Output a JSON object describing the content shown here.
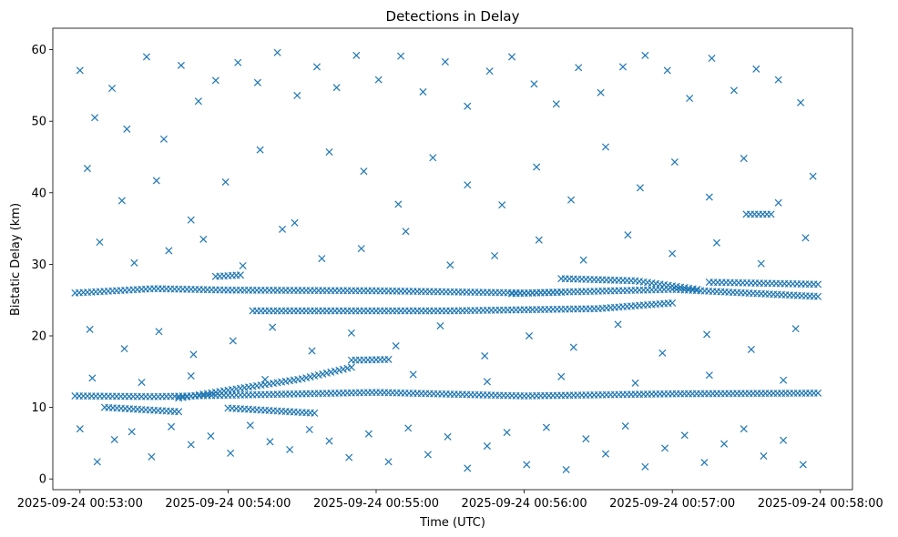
{
  "chart_data": {
    "type": "scatter",
    "title": "Detections in Delay",
    "xlabel": "Time (UTC)",
    "ylabel": "Bistatic Delay (km)",
    "x_ticks": [
      "2025-09-24 00:53:00",
      "2025-09-24 00:54:00",
      "2025-09-24 00:55:00",
      "2025-09-24 00:56:00",
      "2025-09-24 00:57:00",
      "2025-09-24 00:58:00"
    ],
    "xlim": [
      "2025-09-24 00:52:49",
      "2025-09-24 00:58:13"
    ],
    "y_ticks": [
      0,
      10,
      20,
      30,
      40,
      50,
      60
    ],
    "ylim": [
      -1.5,
      63
    ],
    "marker": "x",
    "grid": false,
    "color": "#1f77b4",
    "tracks": [
      {
        "points": [
          [
            "2025-09-24 00:52:58",
            11.6
          ],
          [
            "2025-09-24 00:53:30",
            11.5
          ],
          [
            "2025-09-24 00:54:00",
            11.7
          ],
          [
            "2025-09-24 00:55:00",
            12.1
          ],
          [
            "2025-09-24 00:56:00",
            11.6
          ],
          [
            "2025-09-24 00:57:00",
            11.9
          ],
          [
            "2025-09-24 00:57:59",
            12.0
          ]
        ]
      },
      {
        "points": [
          [
            "2025-09-24 00:53:40",
            11.3
          ],
          [
            "2025-09-24 00:54:00",
            12.4
          ],
          [
            "2025-09-24 00:54:30",
            14.0
          ],
          [
            "2025-09-24 00:54:50",
            15.6
          ]
        ]
      },
      {
        "points": [
          [
            "2025-09-24 00:54:50",
            16.6
          ],
          [
            "2025-09-24 00:55:05",
            16.7
          ]
        ]
      },
      {
        "points": [
          [
            "2025-09-24 00:53:10",
            10.0
          ],
          [
            "2025-09-24 00:53:40",
            9.4
          ]
        ]
      },
      {
        "points": [
          [
            "2025-09-24 00:54:00",
            9.9
          ],
          [
            "2025-09-24 00:54:35",
            9.2
          ]
        ]
      },
      {
        "points": [
          [
            "2025-09-24 00:52:58",
            26.0
          ],
          [
            "2025-09-24 00:53:30",
            26.6
          ],
          [
            "2025-09-24 00:54:00",
            26.4
          ],
          [
            "2025-09-24 00:55:00",
            26.3
          ],
          [
            "2025-09-24 00:56:00",
            26.0
          ],
          [
            "2025-09-24 00:57:00",
            26.5
          ],
          [
            "2025-09-24 00:57:59",
            25.5
          ]
        ]
      },
      {
        "points": [
          [
            "2025-09-24 00:54:10",
            23.5
          ],
          [
            "2025-09-24 00:55:30",
            23.5
          ],
          [
            "2025-09-24 00:56:30",
            23.8
          ],
          [
            "2025-09-24 00:57:00",
            24.6
          ]
        ]
      },
      {
        "points": [
          [
            "2025-09-24 00:56:15",
            28.0
          ],
          [
            "2025-09-24 00:56:45",
            27.7
          ],
          [
            "2025-09-24 00:57:10",
            26.5
          ]
        ]
      },
      {
        "points": [
          [
            "2025-09-24 00:55:55",
            25.9
          ],
          [
            "2025-09-24 00:56:15",
            26.1
          ]
        ]
      },
      {
        "points": [
          [
            "2025-09-24 00:57:30",
            37.0
          ],
          [
            "2025-09-24 00:57:40",
            37.0
          ]
        ]
      },
      {
        "points": [
          [
            "2025-09-24 00:53:55",
            28.3
          ],
          [
            "2025-09-24 00:54:05",
            28.5
          ]
        ]
      },
      {
        "points": [
          [
            "2025-09-24 00:57:15",
            27.5
          ],
          [
            "2025-09-24 00:57:59",
            27.2
          ]
        ]
      }
    ],
    "scatter_points": [
      [
        "2025-09-24 00:53:00",
        57.1
      ],
      [
        "2025-09-24 00:53:06",
        50.5
      ],
      [
        "2025-09-24 00:53:13",
        54.6
      ],
      [
        "2025-09-24 00:53:19",
        48.9
      ],
      [
        "2025-09-24 00:53:27",
        59.0
      ],
      [
        "2025-09-24 00:53:34",
        47.5
      ],
      [
        "2025-09-24 00:53:41",
        57.8
      ],
      [
        "2025-09-24 00:53:48",
        52.8
      ],
      [
        "2025-09-24 00:53:55",
        55.7
      ],
      [
        "2025-09-24 00:54:04",
        58.2
      ],
      [
        "2025-09-24 00:54:12",
        55.4
      ],
      [
        "2025-09-24 00:54:20",
        59.6
      ],
      [
        "2025-09-24 00:54:28",
        53.6
      ],
      [
        "2025-09-24 00:54:36",
        57.6
      ],
      [
        "2025-09-24 00:54:44",
        54.7
      ],
      [
        "2025-09-24 00:54:52",
        59.2
      ],
      [
        "2025-09-24 00:55:01",
        55.8
      ],
      [
        "2025-09-24 00:55:10",
        59.1
      ],
      [
        "2025-09-24 00:55:19",
        54.1
      ],
      [
        "2025-09-24 00:55:28",
        58.3
      ],
      [
        "2025-09-24 00:55:37",
        52.1
      ],
      [
        "2025-09-24 00:55:46",
        57.0
      ],
      [
        "2025-09-24 00:55:55",
        59.0
      ],
      [
        "2025-09-24 00:56:04",
        55.2
      ],
      [
        "2025-09-24 00:56:13",
        52.4
      ],
      [
        "2025-09-24 00:56:22",
        57.5
      ],
      [
        "2025-09-24 00:56:31",
        54.0
      ],
      [
        "2025-09-24 00:56:40",
        57.6
      ],
      [
        "2025-09-24 00:56:49",
        59.2
      ],
      [
        "2025-09-24 00:56:58",
        57.1
      ],
      [
        "2025-09-24 00:57:07",
        53.2
      ],
      [
        "2025-09-24 00:57:16",
        58.8
      ],
      [
        "2025-09-24 00:57:25",
        54.3
      ],
      [
        "2025-09-24 00:57:34",
        57.3
      ],
      [
        "2025-09-24 00:57:43",
        55.8
      ],
      [
        "2025-09-24 00:57:52",
        52.6
      ],
      [
        "2025-09-24 00:53:03",
        43.4
      ],
      [
        "2025-09-24 00:53:17",
        38.9
      ],
      [
        "2025-09-24 00:53:31",
        41.7
      ],
      [
        "2025-09-24 00:53:45",
        36.2
      ],
      [
        "2025-09-24 00:53:59",
        41.5
      ],
      [
        "2025-09-24 00:54:13",
        46.0
      ],
      [
        "2025-09-24 00:54:27",
        35.8
      ],
      [
        "2025-09-24 00:54:41",
        45.7
      ],
      [
        "2025-09-24 00:54:55",
        43.0
      ],
      [
        "2025-09-24 00:55:09",
        38.4
      ],
      [
        "2025-09-24 00:55:23",
        44.9
      ],
      [
        "2025-09-24 00:55:37",
        41.1
      ],
      [
        "2025-09-24 00:55:51",
        38.3
      ],
      [
        "2025-09-24 00:56:05",
        43.6
      ],
      [
        "2025-09-24 00:56:19",
        39.0
      ],
      [
        "2025-09-24 00:56:33",
        46.4
      ],
      [
        "2025-09-24 00:56:47",
        40.7
      ],
      [
        "2025-09-24 00:57:01",
        44.3
      ],
      [
        "2025-09-24 00:57:15",
        39.4
      ],
      [
        "2025-09-24 00:57:29",
        44.8
      ],
      [
        "2025-09-24 00:57:43",
        38.6
      ],
      [
        "2025-09-24 00:57:57",
        42.3
      ],
      [
        "2025-09-24 00:53:08",
        33.1
      ],
      [
        "2025-09-24 00:53:22",
        30.2
      ],
      [
        "2025-09-24 00:53:36",
        31.9
      ],
      [
        "2025-09-24 00:53:50",
        33.5
      ],
      [
        "2025-09-24 00:54:06",
        29.8
      ],
      [
        "2025-09-24 00:54:22",
        34.9
      ],
      [
        "2025-09-24 00:54:38",
        30.8
      ],
      [
        "2025-09-24 00:54:54",
        32.2
      ],
      [
        "2025-09-24 00:55:12",
        34.6
      ],
      [
        "2025-09-24 00:55:30",
        29.9
      ],
      [
        "2025-09-24 00:55:48",
        31.2
      ],
      [
        "2025-09-24 00:56:06",
        33.4
      ],
      [
        "2025-09-24 00:56:24",
        30.6
      ],
      [
        "2025-09-24 00:56:42",
        34.1
      ],
      [
        "2025-09-24 00:57:00",
        31.5
      ],
      [
        "2025-09-24 00:57:18",
        33.0
      ],
      [
        "2025-09-24 00:57:36",
        30.1
      ],
      [
        "2025-09-24 00:57:54",
        33.7
      ],
      [
        "2025-09-24 00:53:04",
        20.9
      ],
      [
        "2025-09-24 00:53:18",
        18.2
      ],
      [
        "2025-09-24 00:53:32",
        20.6
      ],
      [
        "2025-09-24 00:53:46",
        17.4
      ],
      [
        "2025-09-24 00:54:02",
        19.3
      ],
      [
        "2025-09-24 00:54:18",
        21.2
      ],
      [
        "2025-09-24 00:54:34",
        17.9
      ],
      [
        "2025-09-24 00:54:50",
        20.4
      ],
      [
        "2025-09-24 00:55:08",
        18.6
      ],
      [
        "2025-09-24 00:55:26",
        21.4
      ],
      [
        "2025-09-24 00:55:44",
        17.2
      ],
      [
        "2025-09-24 00:56:02",
        20.0
      ],
      [
        "2025-09-24 00:56:20",
        18.4
      ],
      [
        "2025-09-24 00:56:38",
        21.6
      ],
      [
        "2025-09-24 00:56:56",
        17.6
      ],
      [
        "2025-09-24 00:57:14",
        20.2
      ],
      [
        "2025-09-24 00:57:32",
        18.1
      ],
      [
        "2025-09-24 00:57:50",
        21.0
      ],
      [
        "2025-09-24 00:53:05",
        14.1
      ],
      [
        "2025-09-24 00:53:25",
        13.5
      ],
      [
        "2025-09-24 00:53:45",
        14.4
      ],
      [
        "2025-09-24 00:54:15",
        13.9
      ],
      [
        "2025-09-24 00:55:15",
        14.6
      ],
      [
        "2025-09-24 00:55:45",
        13.6
      ],
      [
        "2025-09-24 00:56:15",
        14.3
      ],
      [
        "2025-09-24 00:56:45",
        13.4
      ],
      [
        "2025-09-24 00:57:15",
        14.5
      ],
      [
        "2025-09-24 00:57:45",
        13.8
      ],
      [
        "2025-09-24 00:53:00",
        7.0
      ],
      [
        "2025-09-24 00:53:07",
        2.4
      ],
      [
        "2025-09-24 00:53:14",
        5.5
      ],
      [
        "2025-09-24 00:53:21",
        6.6
      ],
      [
        "2025-09-24 00:53:29",
        3.1
      ],
      [
        "2025-09-24 00:53:37",
        7.3
      ],
      [
        "2025-09-24 00:53:45",
        4.8
      ],
      [
        "2025-09-24 00:53:53",
        6.0
      ],
      [
        "2025-09-24 00:54:01",
        3.6
      ],
      [
        "2025-09-24 00:54:09",
        7.5
      ],
      [
        "2025-09-24 00:54:17",
        5.2
      ],
      [
        "2025-09-24 00:54:25",
        4.1
      ],
      [
        "2025-09-24 00:54:33",
        6.9
      ],
      [
        "2025-09-24 00:54:41",
        5.3
      ],
      [
        "2025-09-24 00:54:49",
        3.0
      ],
      [
        "2025-09-24 00:54:57",
        6.3
      ],
      [
        "2025-09-24 00:55:05",
        2.4
      ],
      [
        "2025-09-24 00:55:13",
        7.1
      ],
      [
        "2025-09-24 00:55:21",
        3.4
      ],
      [
        "2025-09-24 00:55:29",
        5.9
      ],
      [
        "2025-09-24 00:55:37",
        1.5
      ],
      [
        "2025-09-24 00:55:45",
        4.6
      ],
      [
        "2025-09-24 00:55:53",
        6.5
      ],
      [
        "2025-09-24 00:56:01",
        2.0
      ],
      [
        "2025-09-24 00:56:09",
        7.2
      ],
      [
        "2025-09-24 00:56:17",
        1.3
      ],
      [
        "2025-09-24 00:56:25",
        5.6
      ],
      [
        "2025-09-24 00:56:33",
        3.5
      ],
      [
        "2025-09-24 00:56:41",
        7.4
      ],
      [
        "2025-09-24 00:56:49",
        1.7
      ],
      [
        "2025-09-24 00:56:57",
        4.3
      ],
      [
        "2025-09-24 00:57:05",
        6.1
      ],
      [
        "2025-09-24 00:57:13",
        2.3
      ],
      [
        "2025-09-24 00:57:21",
        4.9
      ],
      [
        "2025-09-24 00:57:29",
        7.0
      ],
      [
        "2025-09-24 00:57:37",
        3.2
      ],
      [
        "2025-09-24 00:57:45",
        5.4
      ],
      [
        "2025-09-24 00:57:53",
        2.0
      ]
    ]
  }
}
